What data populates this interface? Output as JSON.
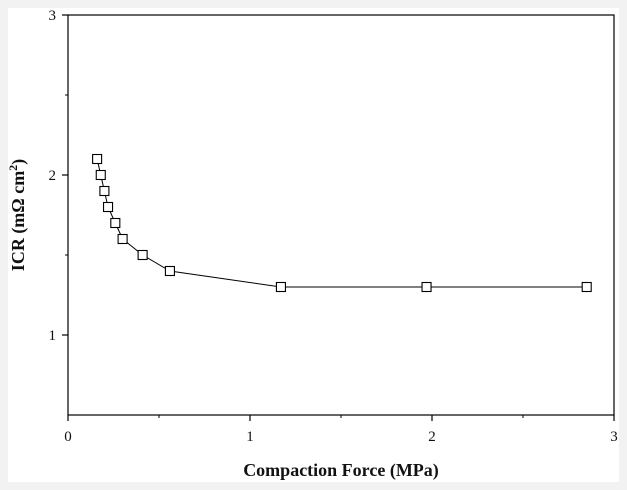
{
  "chart_data": {
    "type": "scatter",
    "title": "",
    "xlabel": "Compaction Force (MPa)",
    "ylabel_main": "ICR (mΩ cm",
    "ylabel_sup": "2",
    "ylabel_close": ")",
    "xlim": [
      0,
      3
    ],
    "ylim": [
      0.5,
      3
    ],
    "xticks": [
      0,
      1,
      2,
      3
    ],
    "yticks": [
      1,
      2,
      3
    ],
    "xtick_labels": [
      "0",
      "1",
      "2",
      "3"
    ],
    "ytick_labels": [
      "1",
      "2",
      "3"
    ],
    "grid": false,
    "marker": "open-square",
    "line": "solid",
    "series": [
      {
        "x": [
          0.16,
          0.18,
          0.2,
          0.22,
          0.26,
          0.3,
          0.41,
          0.56,
          1.17,
          1.97,
          2.85
        ],
        "y": [
          2.1,
          2.0,
          1.9,
          1.8,
          1.7,
          1.6,
          1.5,
          1.4,
          1.3,
          1.3,
          1.3
        ]
      }
    ],
    "colors": {
      "line": "#000000",
      "marker_stroke": "#000000",
      "marker_fill": "#ffffff",
      "background": "#ffffff",
      "page": "#f2f2f2"
    }
  }
}
